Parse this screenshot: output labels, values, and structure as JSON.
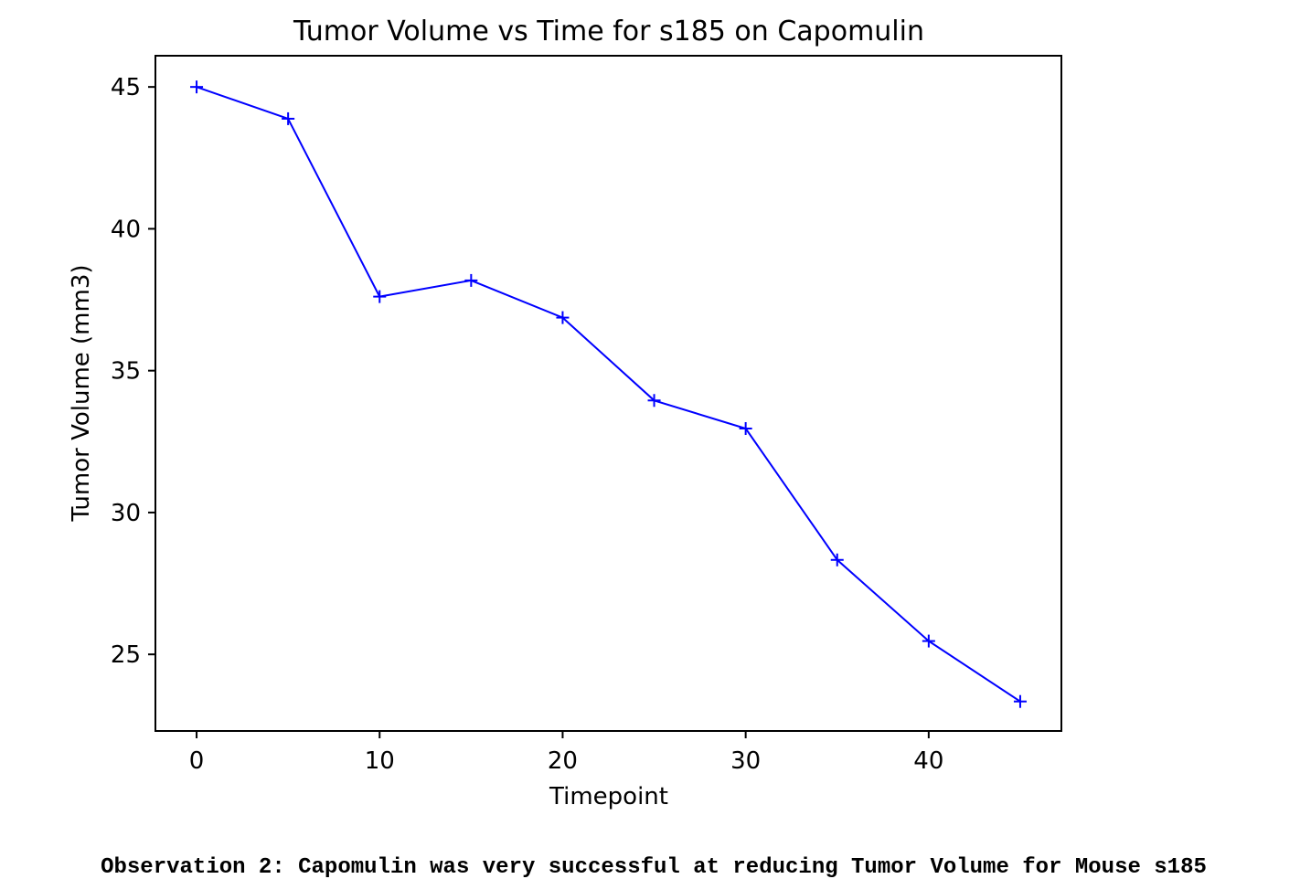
{
  "chart_data": {
    "type": "line",
    "title": "Tumor Volume vs Time for s185 on Capomulin",
    "xlabel": "Timepoint",
    "ylabel": "Tumor Volume (mm3)",
    "xlim": [
      -2.25,
      47.25
    ],
    "ylim": [
      22.3,
      46.1
    ],
    "x_ticks": [
      0,
      10,
      20,
      30,
      40
    ],
    "y_ticks": [
      25,
      30,
      35,
      40,
      45
    ],
    "grid": false,
    "line_color": "#0000ff",
    "marker": "+",
    "series": [
      {
        "x": [
          0,
          5,
          10,
          15,
          20,
          25,
          30,
          35,
          40,
          45
        ],
        "values": [
          45.0,
          43.88,
          37.61,
          38.18,
          36.87,
          33.95,
          32.96,
          28.33,
          25.47,
          23.34
        ]
      }
    ]
  },
  "observation": "Observation 2: Capomulin was very successful at reducing Tumor Volume for Mouse s185"
}
